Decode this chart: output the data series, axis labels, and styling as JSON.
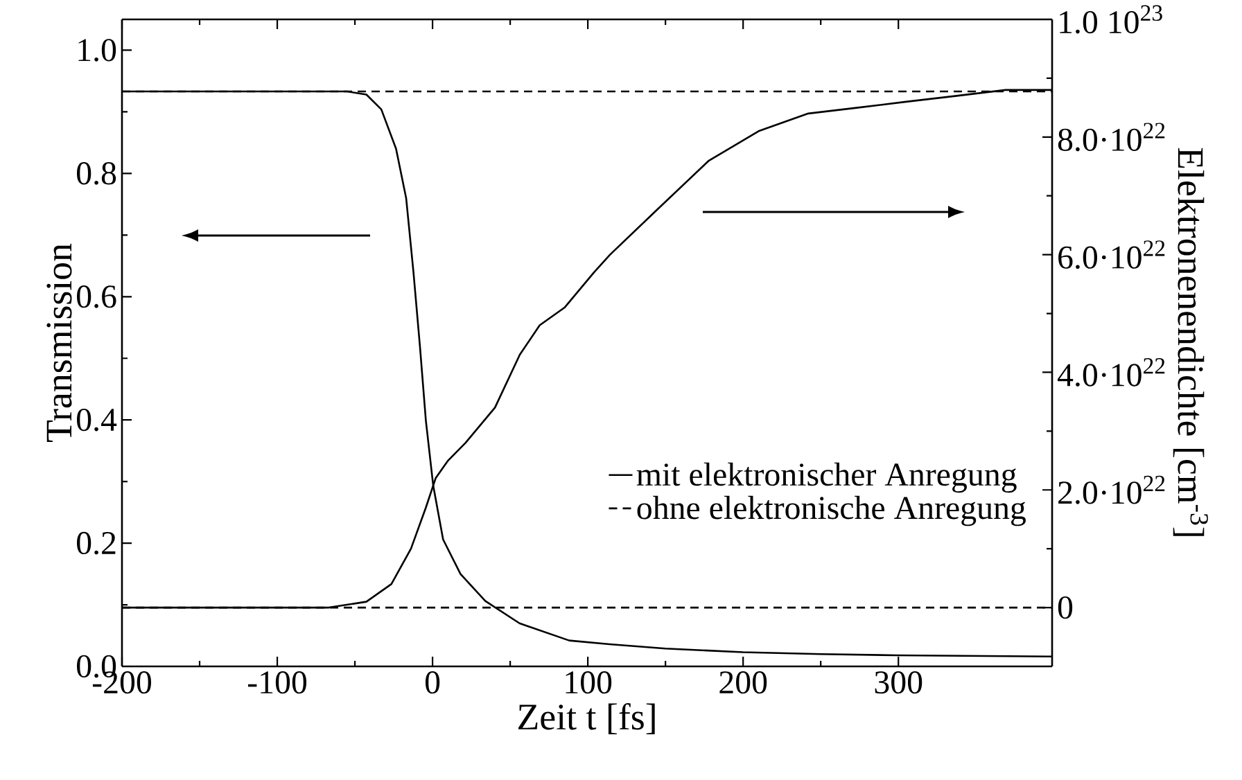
{
  "chart_data": {
    "type": "line",
    "xlabel": "Zeit t [fs]",
    "ylabel": "Transmission",
    "y2label": "Elektronenendichte [cm$^{-3}$]",
    "xlim": [
      -200,
      399
    ],
    "ylim": [
      0,
      1.05
    ],
    "y2lim": [
      -1e+22,
      1e+23
    ],
    "xticks": [
      -200,
      -100,
      0,
      100,
      200,
      300
    ],
    "yticks": [
      {
        "value": 0,
        "label": "0.0"
      },
      {
        "value": 0.2,
        "label": "0.2"
      },
      {
        "value": 0.4,
        "label": "0.4"
      },
      {
        "value": 0.6,
        "label": "0.6"
      },
      {
        "value": 0.8,
        "label": "0.8"
      },
      {
        "value": 1.0,
        "label": "1.0"
      }
    ],
    "y2ticks": [
      0,
      {
        "value": 2e+22,
        "label": "2.0·10$^{22}$"
      },
      {
        "value": 4e+22,
        "label": "4.0·10$^{22}$"
      },
      {
        "value": 6e+22,
        "label": "6.0·10$^{22}$"
      },
      {
        "value": 8e+22,
        "label": "8.0·10$^{22}$"
      },
      {
        "value": 1e+23,
        "label": "1.0 10$^{23}$"
      }
    ],
    "legend": "right",
    "marker": "none",
    "series": [
      {
        "name": "mit elektronischer Anregung",
        "color": "#000000",
        "line_style": "solid",
        "x": [
          -200,
          -55,
          -42.6,
          -33,
          -23.5,
          -17,
          -12.3,
          -8.1,
          -4.3,
          0.4,
          6.8,
          18,
          34,
          56,
          88,
          114,
          150,
          200,
          250,
          299,
          399
        ],
        "values": [
          0.933,
          0.933,
          0.928,
          0.904,
          0.84,
          0.76,
          0.64,
          0.519,
          0.399,
          0.294,
          0.206,
          0.15,
          0.106,
          0.07,
          0.042,
          0.036,
          0.029,
          0.023,
          0.02,
          0.018,
          0.016
        ]
      },
      {
        "name": "ohne elektronische Anregung",
        "color": "#000000",
        "line_style": "dashed",
        "x": [
          -200,
          399
        ],
        "values": [
          0.933,
          0.933
        ]
      },
      {
        "color": "#000000",
        "line_style": "solid",
        "axis": "y2",
        "x": [
          -200,
          -66.8,
          -42.6,
          -26.5,
          -13.9,
          -4.3,
          2,
          10,
          21.2,
          40.2,
          56.2,
          69,
          85,
          104,
          114.3,
          146,
          178,
          210,
          242,
          274,
          305,
          337.5,
          369,
          399
        ],
        "values": [
          0,
          0,
          1e+21,
          4e+21,
          1e+22,
          1.7e+22,
          2.2e+22,
          2.5e+22,
          2.8e+22,
          3.4e+22,
          4.3e+22,
          4.8e+22,
          5.1e+22,
          5.7e+22,
          6e+22,
          6.8e+22,
          7.6e+22,
          8.1e+22,
          8.4e+22,
          8.5e+22,
          8.6e+22,
          8.7e+22,
          8.8e+22,
          8.8e+22
        ]
      },
      {
        "color": "#000000",
        "line_style": "dashed",
        "axis": "y2",
        "x": [
          -200,
          399
        ],
        "values": [
          0,
          0
        ]
      }
    ]
  }
}
